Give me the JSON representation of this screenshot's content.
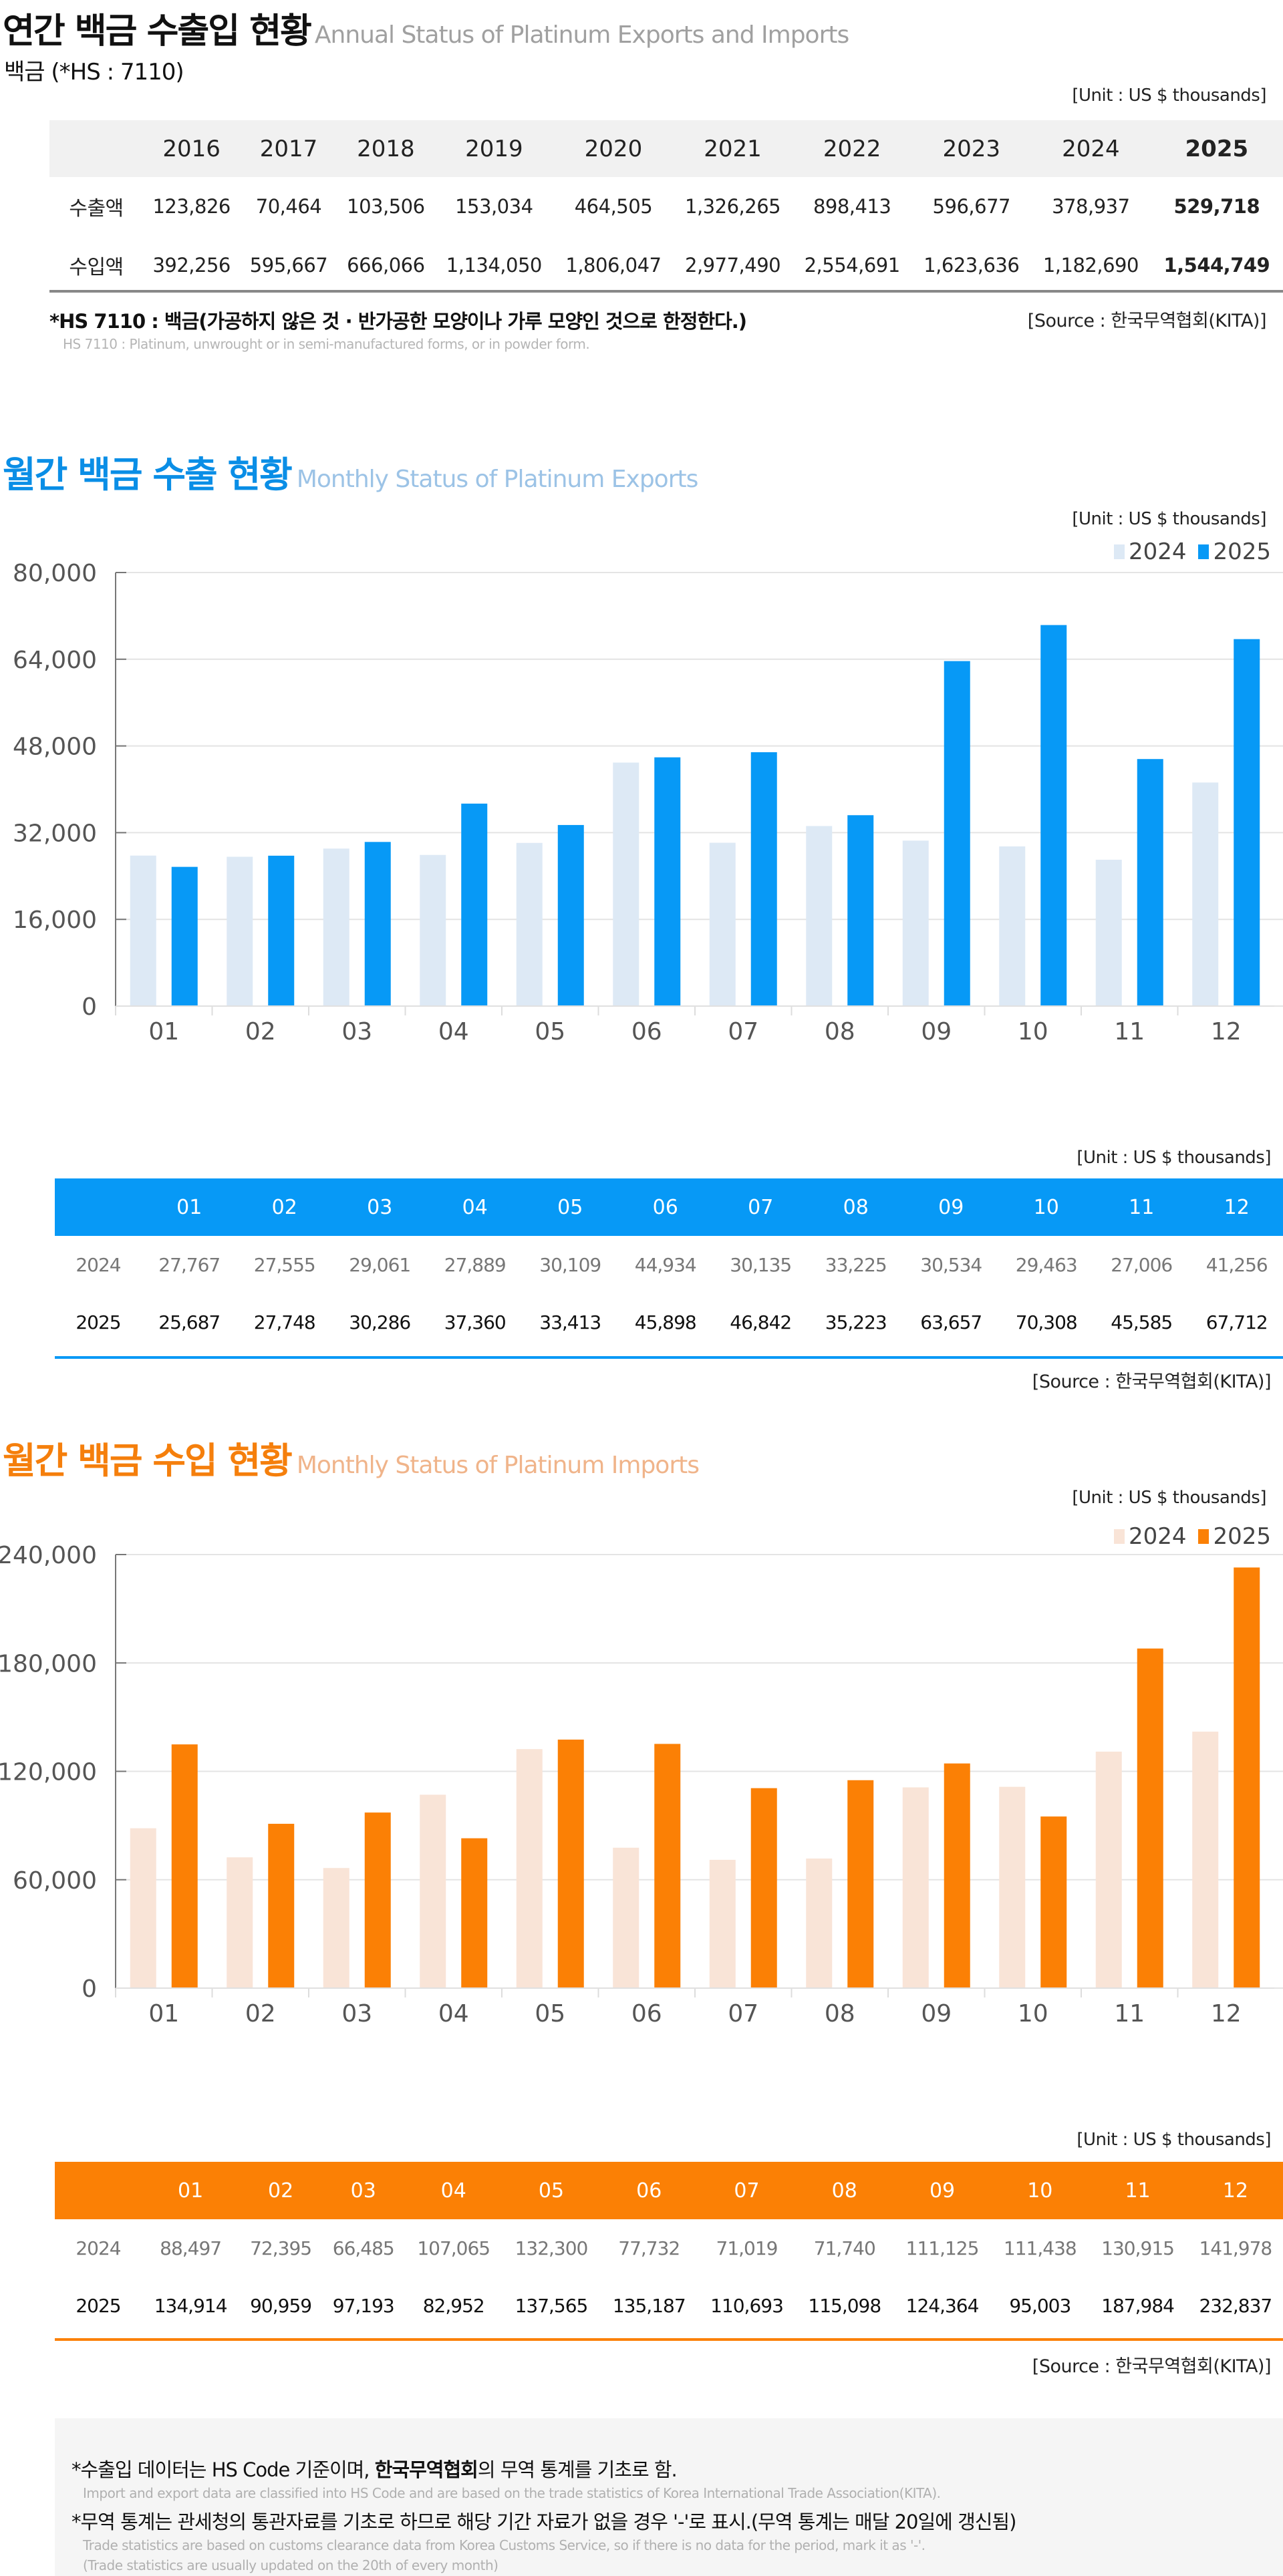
{
  "annual": {
    "title_ko": "연간 백금 수출입 현황",
    "title_en": "Annual Status of Platinum Exports and Imports",
    "hs_label": "백금 (*HS : 7110)",
    "unit": "[Unit : US $ thousands]",
    "years": [
      "2016",
      "2017",
      "2018",
      "2019",
      "2020",
      "2021",
      "2022",
      "2023",
      "2024",
      "2025"
    ],
    "rows": [
      {
        "label": "수출액",
        "values": [
          "123,826",
          "70,464",
          "103,506",
          "153,034",
          "464,505",
          "1,326,265",
          "898,413",
          "596,677",
          "378,937",
          "529,718"
        ]
      },
      {
        "label": "수입액",
        "values": [
          "392,256",
          "595,667",
          "666,066",
          "1,134,050",
          "1,806,047",
          "2,977,490",
          "2,554,691",
          "1,623,636",
          "1,182,690",
          "1,544,749"
        ]
      }
    ],
    "hs_note": "*HS 7110 : 백금(가공하지 않은 것 · 반가공한 모양이나 가루 모양인 것으로 한정한다.)",
    "hs_note_en": "HS 7110 : Platinum, unwrought or in semi-manufactured forms, or in powder form.",
    "source": "[Source : 한국무역협회(KITA)]"
  },
  "exports": {
    "title_ko": "월간 백금 수출 현황",
    "title_en": "Monthly Status of Platinum Exports",
    "unit": "[Unit : US $ thousands]",
    "table_unit": "[Unit : US $ thousands]",
    "source": "[Source : 한국무역협회(KITA)]",
    "months": [
      "01",
      "02",
      "03",
      "04",
      "05",
      "06",
      "07",
      "08",
      "09",
      "10",
      "11",
      "12"
    ],
    "table_rows": [
      {
        "label": "2024",
        "values": [
          "27,767",
          "27,555",
          "29,061",
          "27,889",
          "30,109",
          "44,934",
          "30,135",
          "33,225",
          "30,534",
          "29,463",
          "27,006",
          "41,256"
        ]
      },
      {
        "label": "2025",
        "values": [
          "25,687",
          "27,748",
          "30,286",
          "37,360",
          "33,413",
          "45,898",
          "46,842",
          "35,223",
          "63,657",
          "70,308",
          "45,585",
          "67,712"
        ]
      }
    ]
  },
  "imports": {
    "title_ko": "월간 백금 수입 현황",
    "title_en": "Monthly Status of Platinum Imports",
    "unit": "[Unit : US $ thousands]",
    "table_unit": "[Unit : US $ thousands]",
    "source": "[Source : 한국무역협회(KITA)]",
    "months": [
      "01",
      "02",
      "03",
      "04",
      "05",
      "06",
      "07",
      "08",
      "09",
      "10",
      "11",
      "12"
    ],
    "table_rows": [
      {
        "label": "2024",
        "values": [
          "88,497",
          "72,395",
          "66,485",
          "107,065",
          "132,300",
          "77,732",
          "71,019",
          "71,740",
          "111,125",
          "111,438",
          "130,915",
          "141,978"
        ]
      },
      {
        "label": "2025",
        "values": [
          "134,914",
          "90,959",
          "97,193",
          "82,952",
          "137,565",
          "135,187",
          "110,693",
          "115,098",
          "124,364",
          "95,003",
          "187,984",
          "232,837"
        ]
      }
    ]
  },
  "footer": {
    "note1_ko_pre": "*수출입 데이터는 HS Code 기준이며, ",
    "note1_ko_bold": "한국무역협회",
    "note1_ko_post": "의 무역 통계를 기초로 함.",
    "note1_en": "Import and export data are classified into HS Code and are based on the trade statistics of Korea International  Trade Association(KITA).",
    "note2_ko": "*무역 통계는 관세청의  통관자료를 기초로 하므로 해당 기간 자료가 없을 경우 '-'로 표시.(무역 통계는 매달 20일에 갱신됨)",
    "note2_en": "Trade statistics are based on customs clearance data from Korea Customs Service, so if there is no data for the period, mark it as '-'.",
    "note3_en": "(Trade statistics are usually updated on the 20th of every month)"
  },
  "colors": {
    "export_2025": "#0799f6",
    "export_2024": "#dde9f5",
    "export_title": "#0a8ee6",
    "export_sub": "#9cc3e6",
    "import_2025": "#fb8005",
    "import_2024": "#f9e4d7",
    "import_title": "#f57f0c",
    "import_sub": "#f0b48a"
  },
  "chart_data": [
    {
      "type": "bar",
      "title": "월간 백금 수출 현황",
      "xlabel": "",
      "ylabel": "US $ thousands",
      "categories": [
        "01",
        "02",
        "03",
        "04",
        "05",
        "06",
        "07",
        "08",
        "09",
        "10",
        "11",
        "12"
      ],
      "series": [
        {
          "name": "2024",
          "values": [
            27767,
            27555,
            29061,
            27889,
            30109,
            44934,
            30135,
            33225,
            30534,
            29463,
            27006,
            41256
          ]
        },
        {
          "name": "2025",
          "values": [
            25687,
            27748,
            30286,
            37360,
            33413,
            45898,
            46842,
            35223,
            63657,
            70308,
            45585,
            67712
          ]
        }
      ],
      "ylim": [
        0,
        80000
      ],
      "yticks": [
        0,
        16000,
        32000,
        48000,
        64000,
        80000
      ],
      "ytick_labels": [
        "0",
        "16,000",
        "32,000",
        "48,000",
        "64,000",
        "80,000"
      ],
      "legend": [
        "2024",
        "2025"
      ],
      "legend_position": "top-right",
      "grid": true
    },
    {
      "type": "bar",
      "title": "월간 백금 수입 현황",
      "xlabel": "",
      "ylabel": "US $ thousands",
      "categories": [
        "01",
        "02",
        "03",
        "04",
        "05",
        "06",
        "07",
        "08",
        "09",
        "10",
        "11",
        "12"
      ],
      "series": [
        {
          "name": "2024",
          "values": [
            88497,
            72395,
            66485,
            107065,
            132300,
            77732,
            71019,
            71740,
            111125,
            111438,
            130915,
            141978
          ]
        },
        {
          "name": "2025",
          "values": [
            134914,
            90959,
            97193,
            82952,
            137565,
            135187,
            110693,
            115098,
            124364,
            95003,
            187984,
            232837
          ]
        }
      ],
      "ylim": [
        0,
        240000
      ],
      "yticks": [
        0,
        60000,
        120000,
        180000,
        240000
      ],
      "ytick_labels": [
        "0",
        "60,000",
        "120,000",
        "180,000",
        "240,000"
      ],
      "legend": [
        "2024",
        "2025"
      ],
      "legend_position": "top-right",
      "grid": true
    }
  ]
}
